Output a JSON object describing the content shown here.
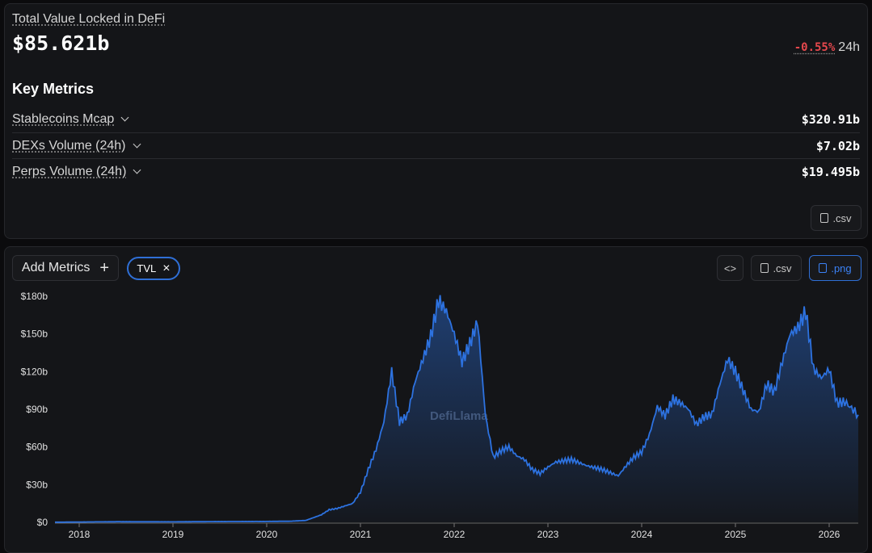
{
  "summary": {
    "label": "Total Value Locked in DeFi",
    "value": "$85.621b",
    "change": "-0.55%",
    "change_period": "24h"
  },
  "key_metrics": {
    "title": "Key Metrics",
    "items": [
      {
        "label": "Stablecoins Mcap",
        "value": "$320.91b"
      },
      {
        "label": "DEXs Volume (24h)",
        "value": "$7.02b"
      },
      {
        "label": "Perps Volume (24h)",
        "value": "$19.495b"
      }
    ],
    "csv_label": ".csv"
  },
  "toolbar": {
    "add_metrics": "Add Metrics",
    "add_icon": "+",
    "active_metric": "TVL",
    "remove_icon": "×",
    "embed_icon": "<>",
    "csv_label": ".csv",
    "png_label": ".png"
  },
  "colors": {
    "accent": "#2f6fd6",
    "line": "#2d72e0",
    "negative": "#e5484d"
  },
  "watermark": "DefiLlama",
  "chart_data": {
    "type": "area",
    "series": [
      {
        "values": [
          [
            "2017-10",
            0.1
          ],
          [
            "2018-06",
            0.5
          ],
          [
            "2019-01",
            0.4
          ],
          [
            "2019-06",
            0.6
          ],
          [
            "2020-01",
            0.7
          ],
          [
            "2020-04",
            0.9
          ],
          [
            "2020-06",
            1.5
          ],
          [
            "2020-08",
            6
          ],
          [
            "2020-09",
            10
          ],
          [
            "2020-10",
            11
          ],
          [
            "2020-12",
            15
          ],
          [
            "2021-01",
            24
          ],
          [
            "2021-02",
            42
          ],
          [
            "2021-03",
            58
          ],
          [
            "2021-04",
            80
          ],
          [
            "2021-05",
            120
          ],
          [
            "2021-06",
            80
          ],
          [
            "2021-07",
            85
          ],
          [
            "2021-08",
            112
          ],
          [
            "2021-09",
            130
          ],
          [
            "2021-10",
            148
          ],
          [
            "2021-11",
            177
          ],
          [
            "2021-12",
            168
          ],
          [
            "2022-01",
            150
          ],
          [
            "2022-02",
            128
          ],
          [
            "2022-03",
            142
          ],
          [
            "2022-04",
            160
          ],
          [
            "2022-05",
            85
          ],
          [
            "2022-06",
            52
          ],
          [
            "2022-07",
            57
          ],
          [
            "2022-08",
            60
          ],
          [
            "2022-09",
            53
          ],
          [
            "2022-10",
            50
          ],
          [
            "2022-11",
            42
          ],
          [
            "2022-12",
            39
          ],
          [
            "2023-01",
            44
          ],
          [
            "2023-02",
            48
          ],
          [
            "2023-04",
            50
          ],
          [
            "2023-06",
            45
          ],
          [
            "2023-08",
            42
          ],
          [
            "2023-10",
            37
          ],
          [
            "2023-11",
            45
          ],
          [
            "2023-12",
            52
          ],
          [
            "2024-01",
            56
          ],
          [
            "2024-02",
            70
          ],
          [
            "2024-03",
            92
          ],
          [
            "2024-04",
            85
          ],
          [
            "2024-05",
            98
          ],
          [
            "2024-06",
            95
          ],
          [
            "2024-07",
            90
          ],
          [
            "2024-08",
            78
          ],
          [
            "2024-09",
            84
          ],
          [
            "2024-10",
            86
          ],
          [
            "2024-11",
            110
          ],
          [
            "2024-12",
            130
          ],
          [
            "2025-01",
            120
          ],
          [
            "2025-02",
            105
          ],
          [
            "2025-03",
            90
          ],
          [
            "2025-04",
            88
          ],
          [
            "2025-05",
            110
          ],
          [
            "2025-06",
            104
          ],
          [
            "2025-07",
            128
          ],
          [
            "2025-08",
            150
          ],
          [
            "2025-09",
            155
          ],
          [
            "2025-10",
            168
          ],
          [
            "2025-11",
            122
          ],
          [
            "2025-12",
            115
          ],
          [
            "2026-01",
            122
          ],
          [
            "2026-02",
            95
          ],
          [
            "2026-03",
            96
          ],
          [
            "2026-04",
            85.6
          ]
        ]
      }
    ],
    "xticks": [
      "2018",
      "2019",
      "2020",
      "2021",
      "2022",
      "2023",
      "2024",
      "2025",
      "2026"
    ],
    "yticks": [
      "$0",
      "$30b",
      "$60b",
      "$90b",
      "$120b",
      "$150b",
      "$180b"
    ],
    "ylim": [
      0,
      180
    ],
    "grid": false
  }
}
